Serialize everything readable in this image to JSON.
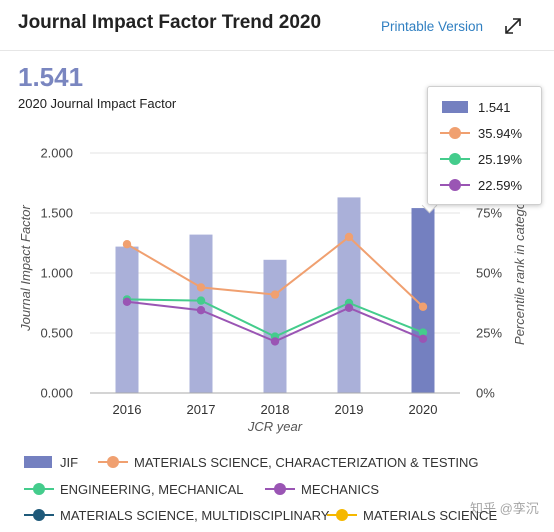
{
  "header": {
    "title": "Journal Impact Factor Trend 2020",
    "printable_label": "Printable Version"
  },
  "summary": {
    "value": "1.541",
    "label": "2020 Journal Impact Factor"
  },
  "tooltip": {
    "rows": [
      "1.541",
      "35.94%",
      "25.19%",
      "22.59%"
    ]
  },
  "watermark": "知乎 @孪沉",
  "chart_data": {
    "type": "bar",
    "categories": [
      "2016",
      "2017",
      "2018",
      "2019",
      "2020"
    ],
    "xlabel": "JCR year",
    "ylabel": "Journal Impact Factor",
    "y2label": "Percentile rank in category",
    "ylim": [
      0,
      2
    ],
    "y2lim": [
      0,
      100
    ],
    "yticks": [
      "0.000",
      "0.500",
      "1.000",
      "1.500",
      "2.000"
    ],
    "y2ticks": [
      "0%",
      "25%",
      "50%",
      "75%"
    ],
    "grid": true,
    "bar_series": {
      "name": "JIF",
      "color": "#aab0d9",
      "highlight_color": "#7480c0",
      "values": [
        1.22,
        1.32,
        1.11,
        1.63,
        1.541
      ]
    },
    "line_series": [
      {
        "name": "MATERIALS SCIENCE, CHARACTERIZATION & TESTING",
        "color": "#f0a070",
        "values": [
          62,
          44,
          41,
          65,
          35.94
        ]
      },
      {
        "name": "ENGINEERING, MECHANICAL",
        "color": "#44cc8c",
        "values": [
          39,
          38.5,
          23.5,
          37.5,
          25.19
        ]
      },
      {
        "name": "MECHANICS",
        "color": "#9a55b4",
        "values": [
          38,
          34.5,
          21.5,
          35.5,
          22.59
        ]
      }
    ],
    "legend": [
      {
        "name": "JIF",
        "color": "#7480c0",
        "kind": "bar"
      },
      {
        "name": "MATERIALS SCIENCE, CHARACTERIZATION & TESTING",
        "color": "#f0a070",
        "kind": "line"
      },
      {
        "name": "ENGINEERING, MECHANICAL",
        "color": "#44cc8c",
        "kind": "line"
      },
      {
        "name": "MECHANICS",
        "color": "#9a55b4",
        "kind": "line"
      },
      {
        "name": "MATERIALS SCIENCE, MULTIDISCIPLINARY",
        "color": "#1f5a7a",
        "kind": "line"
      },
      {
        "name": "MATERIALS SCIENCE",
        "color": "#f5b800",
        "kind": "line"
      }
    ],
    "legend_placement": "bottom",
    "tooltip_colors": [
      "#7480c0",
      "#f0a070",
      "#44cc8c",
      "#9a55b4"
    ]
  }
}
